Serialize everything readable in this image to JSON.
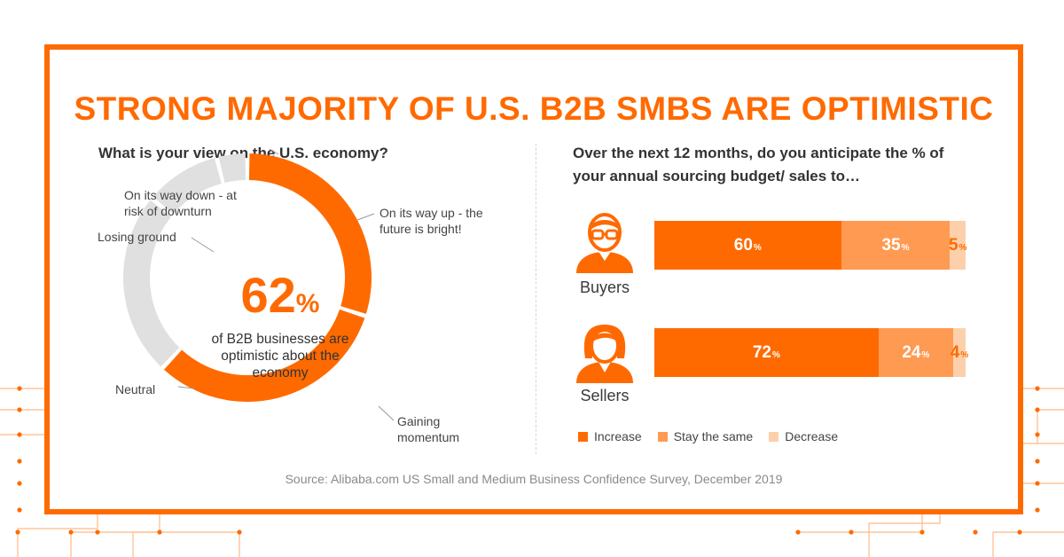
{
  "title": "STRONG MAJORITY OF U.S. B2B SMBS ARE OPTIMISTIC",
  "colors": {
    "accent": "#ff6a00",
    "stay": "#ff9a52",
    "decrease": "#fdd0ac",
    "neutral": "#e0e0e0"
  },
  "left": {
    "question": "What is your view on the U.S. economy?",
    "center_value": "62",
    "center_unit": "%",
    "center_text": "of B2B businesses are optimistic about the economy",
    "labels": {
      "up": "On its way up - the future is bright!",
      "gaining": "Gaining momentum",
      "neutral": "Neutral",
      "losing": "Losing ground",
      "down": "On its way down - at risk of downturn"
    }
  },
  "right": {
    "question": "Over the next 12 months, do you anticipate the % of your annual sourcing budget/ sales to…",
    "percent_sign": "%",
    "rows": [
      {
        "label": "Buyers",
        "increase": "60",
        "stay": "35",
        "decrease": "5"
      },
      {
        "label": "Sellers",
        "increase": "72",
        "stay": "24",
        "decrease": "4"
      }
    ],
    "legend": [
      "Increase",
      "Stay the same",
      "Decrease"
    ]
  },
  "source": "Source: Alibaba.com US Small and Medium Business Confidence Survey, December 2019",
  "chart_data": [
    {
      "type": "pie",
      "title": "What is your view on the U.S. economy?",
      "categories": [
        "On its way up - the future is bright!",
        "Gaining momentum",
        "Neutral",
        "Losing ground",
        "On its way down - at risk of downturn"
      ],
      "values": [
        30,
        32,
        24,
        10,
        4
      ],
      "highlight_total": 62,
      "style": "donut"
    },
    {
      "type": "bar",
      "orientation": "horizontal-stacked",
      "title": "Over the next 12 months, do you anticipate the % of your annual sourcing budget/ sales to…",
      "categories": [
        "Buyers",
        "Sellers"
      ],
      "series": [
        {
          "name": "Increase",
          "values": [
            60,
            72
          ]
        },
        {
          "name": "Stay the same",
          "values": [
            35,
            24
          ]
        },
        {
          "name": "Decrease",
          "values": [
            5,
            4
          ]
        }
      ]
    }
  ]
}
